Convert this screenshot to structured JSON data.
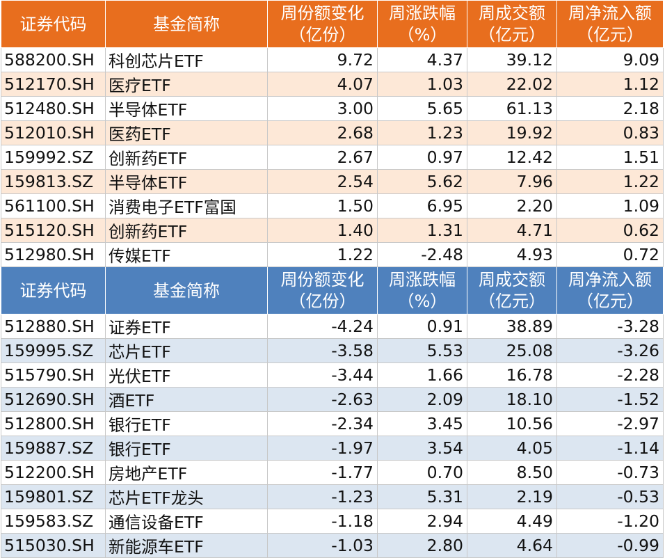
{
  "headers": {
    "code": "证券代码",
    "name": "基金简称",
    "share_change_l1": "周份额变化",
    "share_change_l2": "（亿份）",
    "pct_change_l1": "周涨跌幅",
    "pct_change_l2": "（%）",
    "volume_l1": "周成交额",
    "volume_l2": "（亿元）",
    "net_inflow_l1": "周净流入额",
    "net_inflow_l2": "（亿元）"
  },
  "inflow_rows": [
    {
      "code": "588200.SH",
      "name": "科创芯片ETF",
      "share_change": "9.72",
      "pct_change": "4.37",
      "volume": "39.12",
      "net_inflow": "9.09"
    },
    {
      "code": "512170.SH",
      "name": "医疗ETF",
      "share_change": "4.07",
      "pct_change": "1.03",
      "volume": "22.02",
      "net_inflow": "1.12"
    },
    {
      "code": "512480.SH",
      "name": "半导体ETF",
      "share_change": "3.00",
      "pct_change": "5.65",
      "volume": "61.13",
      "net_inflow": "2.18"
    },
    {
      "code": "512010.SH",
      "name": "医药ETF",
      "share_change": "2.68",
      "pct_change": "1.23",
      "volume": "19.92",
      "net_inflow": "0.83"
    },
    {
      "code": "159992.SZ",
      "name": "创新药ETF",
      "share_change": "2.67",
      "pct_change": "0.97",
      "volume": "12.42",
      "net_inflow": "1.51"
    },
    {
      "code": "159813.SZ",
      "name": "半导体ETF",
      "share_change": "2.54",
      "pct_change": "5.62",
      "volume": "7.96",
      "net_inflow": "1.22"
    },
    {
      "code": "561100.SH",
      "name": "消费电子ETF富国",
      "share_change": "1.50",
      "pct_change": "6.95",
      "volume": "2.20",
      "net_inflow": "1.09"
    },
    {
      "code": "515120.SH",
      "name": "创新药ETF",
      "share_change": "1.40",
      "pct_change": "1.31",
      "volume": "4.71",
      "net_inflow": "0.62"
    },
    {
      "code": "512980.SH",
      "name": "传媒ETF",
      "share_change": "1.22",
      "pct_change": "-2.48",
      "volume": "4.93",
      "net_inflow": "0.72"
    }
  ],
  "outflow_rows": [
    {
      "code": "512880.SH",
      "name": "证券ETF",
      "share_change": "-4.24",
      "pct_change": "0.91",
      "volume": "38.89",
      "net_inflow": "-3.28"
    },
    {
      "code": "159995.SZ",
      "name": "芯片ETF",
      "share_change": "-3.58",
      "pct_change": "5.53",
      "volume": "25.08",
      "net_inflow": "-3.26"
    },
    {
      "code": "515790.SH",
      "name": "光伏ETF",
      "share_change": "-3.44",
      "pct_change": "1.66",
      "volume": "16.78",
      "net_inflow": "-2.28"
    },
    {
      "code": "512690.SH",
      "name": "酒ETF",
      "share_change": "-2.63",
      "pct_change": "2.09",
      "volume": "18.10",
      "net_inflow": "-1.52"
    },
    {
      "code": "512800.SH",
      "name": "银行ETF",
      "share_change": "-2.34",
      "pct_change": "3.45",
      "volume": "10.56",
      "net_inflow": "-2.97"
    },
    {
      "code": "159887.SZ",
      "name": "银行ETF",
      "share_change": "-1.97",
      "pct_change": "3.54",
      "volume": "4.05",
      "net_inflow": "-1.14"
    },
    {
      "code": "512200.SH",
      "name": "房地产ETF",
      "share_change": "-1.77",
      "pct_change": "0.70",
      "volume": "8.50",
      "net_inflow": "-0.73"
    },
    {
      "code": "159801.SZ",
      "name": "芯片ETF龙头",
      "share_change": "-1.23",
      "pct_change": "5.31",
      "volume": "2.19",
      "net_inflow": "-0.53"
    },
    {
      "code": "159583.SZ",
      "name": "通信设备ETF",
      "share_change": "-1.18",
      "pct_change": "2.94",
      "volume": "4.49",
      "net_inflow": "-1.20"
    },
    {
      "code": "515030.SH",
      "name": "新能源车ETF",
      "share_change": "-1.03",
      "pct_change": "2.80",
      "volume": "4.64",
      "net_inflow": "-0.99"
    }
  ],
  "colors": {
    "inflow_header": "#e86e1e",
    "inflow_alt_row": "#fde8d7",
    "outflow_header": "#4f81bd",
    "outflow_alt_row": "#dce6f1"
  }
}
